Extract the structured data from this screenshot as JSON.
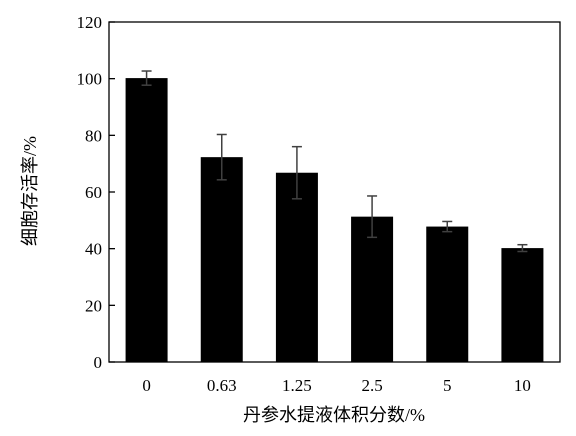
{
  "chart_data": {
    "type": "bar",
    "title": "",
    "xlabel": "丹参水提液体积分数/%",
    "ylabel": "细胞存活率/%",
    "categories": [
      "0",
      "0.63",
      "1.25",
      "2.5",
      "5",
      "10"
    ],
    "values": [
      100.2,
      72.3,
      66.8,
      51.3,
      47.8,
      40.2
    ],
    "errors": [
      2.5,
      8.0,
      9.2,
      7.3,
      1.8,
      1.2
    ],
    "ylim": [
      0,
      120
    ],
    "yticks": [
      "0",
      "20",
      "40",
      "60",
      "80",
      "100",
      "120"
    ],
    "grid": false,
    "bar_color": "#000000",
    "error_bar_color": "#404040"
  }
}
